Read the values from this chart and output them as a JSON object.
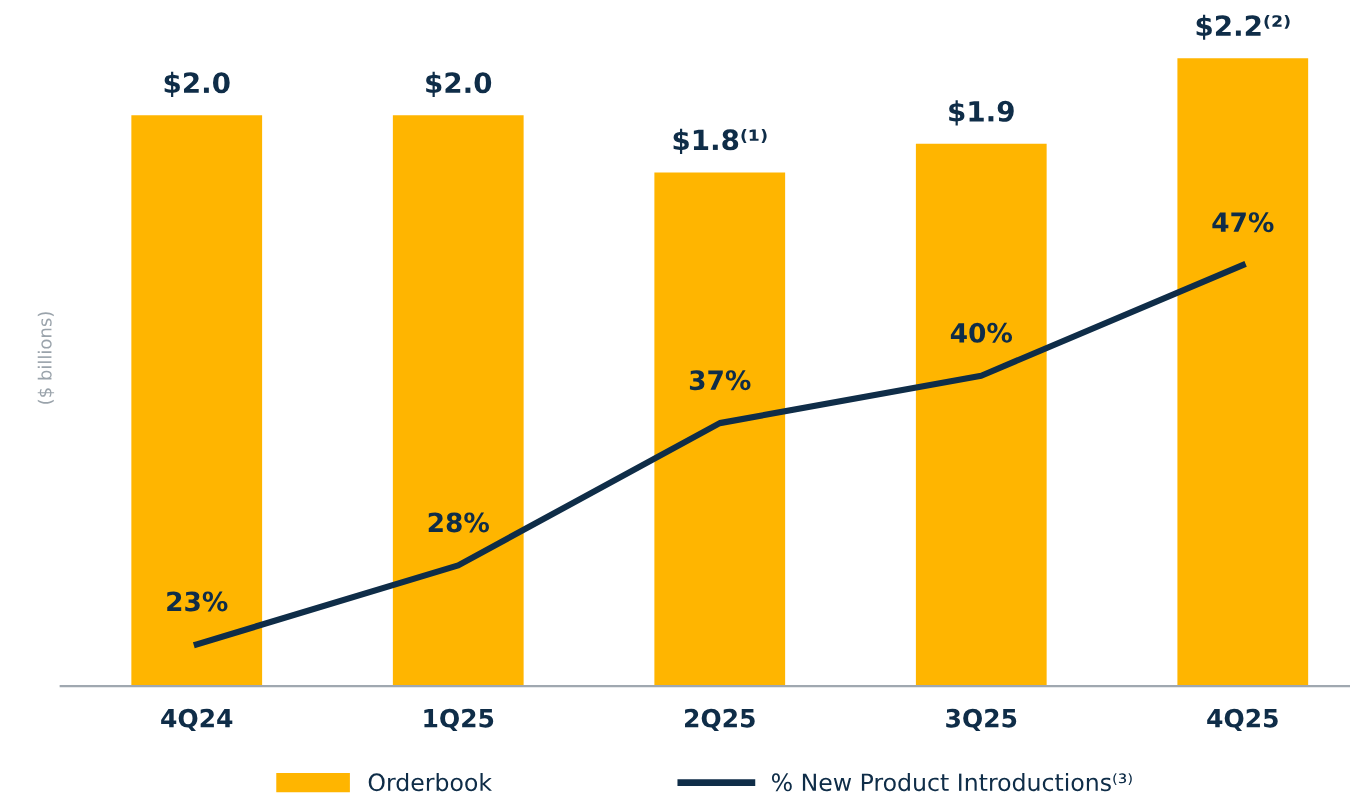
{
  "chart_data": {
    "type": "bar",
    "ylabel": "($ billions)",
    "categories": [
      "4Q24",
      "1Q25",
      "2Q25",
      "3Q25",
      "4Q25"
    ],
    "series": [
      {
        "name": "Orderbook",
        "color": "#ffb500",
        "values": [
          2.0,
          2.0,
          1.8,
          1.9,
          2.2
        ],
        "value_labels": [
          "$2.0",
          "$2.0",
          "$1.8⁽¹⁾",
          "$1.9",
          "$2.2⁽²⁾"
        ]
      },
      {
        "name": "% New Product Introductions⁽³⁾",
        "type": "line",
        "axis": "y2",
        "color": "#0f2d48",
        "values": [
          23,
          28,
          37,
          40,
          47
        ],
        "value_labels": [
          "23%",
          "28%",
          "37%",
          "40%",
          "47%"
        ]
      }
    ],
    "tick_labels": "x",
    "grid": false,
    "legend": "bottom",
    "marker": "none",
    "line_style": "solid"
  }
}
